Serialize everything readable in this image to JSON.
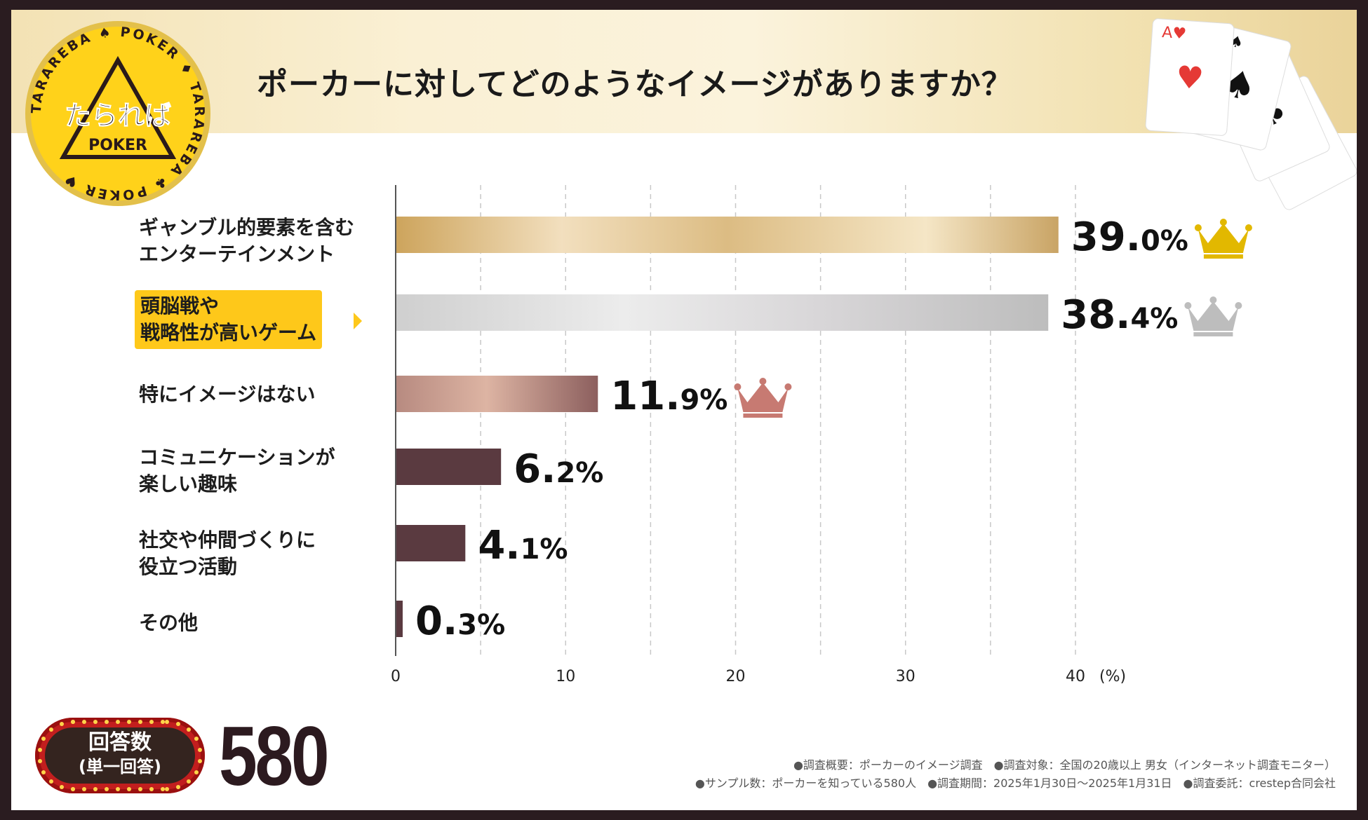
{
  "header": {
    "title": "ポーカーに対してどのようなイメージがありますか？"
  },
  "logo": {
    "main": "たられば",
    "sub": "POKER",
    "ring_text": "TARAREBA ♠ POKER ♦ TARAREBA ♣ POKER ♥"
  },
  "chart_data": {
    "type": "bar",
    "orientation": "horizontal",
    "title": "ポーカーに対してどのようなイメージがありますか？",
    "categories": [
      [
        "ギャンブル的要素を含む",
        "エンターテインメント"
      ],
      [
        "頭脳戦や",
        "戦略性が高いゲーム"
      ],
      [
        "特にイメージはない"
      ],
      [
        "コミュニケーションが",
        "楽しい趣味"
      ],
      [
        "社交や仲間づくりに",
        "役立つ活動"
      ],
      [
        "その他"
      ]
    ],
    "values": [
      39.0,
      38.4,
      11.9,
      6.2,
      4.1,
      0.3
    ],
    "value_labels": [
      {
        "main": "39.",
        "dec": "0%"
      },
      {
        "main": "38.",
        "dec": "4%"
      },
      {
        "main": "11.",
        "dec": "9%"
      },
      {
        "main": "6.",
        "dec": "2%"
      },
      {
        "main": "4.",
        "dec": "1%"
      },
      {
        "main": "0.",
        "dec": "3%"
      }
    ],
    "ranks": [
      "gold",
      "silver",
      "bronze",
      null,
      null,
      null
    ],
    "highlight_index": 1,
    "xlim": [
      0,
      40
    ],
    "xticks": [
      0,
      10,
      20,
      30,
      40
    ],
    "xunit": "(%)",
    "grid": "vertical-dashed"
  },
  "colors": {
    "gold": "#d9b56a",
    "silver": "#d4d2d3",
    "bronze": "#c69a8c",
    "dark": "#5a3a40",
    "crown_gold": "#e2b800",
    "crown_silver": "#bdbdbd",
    "crown_bronze": "#c77a72",
    "highlight": "#fec81a"
  },
  "answer": {
    "label1": "回答数",
    "label2": "(単一回答)",
    "count": "580"
  },
  "footnotes": {
    "line1": "●調査概要：ポーカーのイメージ調査　●調査対象：全国の20歳以上 男女（インターネット調査モニター）",
    "line2": "●サンプル数：ポーカーを知っている580人　●調査期間：2025年1月30日〜2025年1月31日　●調査委託：crestep合同会社"
  }
}
